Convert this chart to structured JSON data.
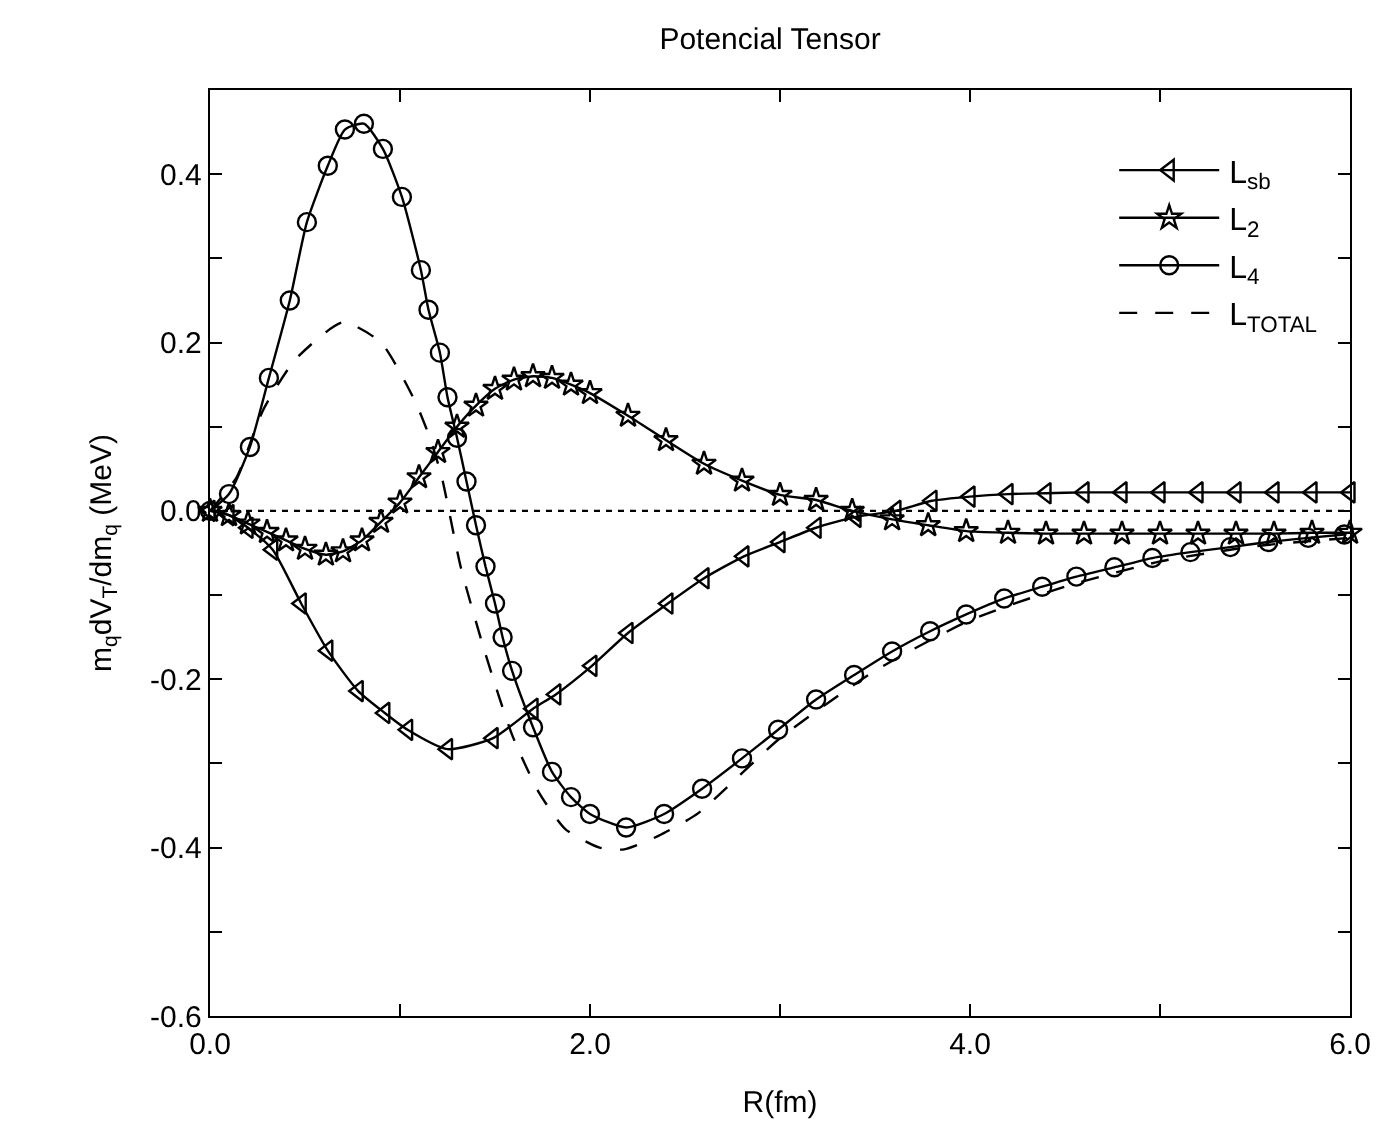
{
  "chart_data": {
    "type": "line",
    "title": "Potencial Tensor",
    "xlabel": "R(fm)",
    "ylabel": "m$_{q}$dV$_{T}$/dm$_{q}$ (MeV)",
    "xlim": [
      0,
      6
    ],
    "ylim": [
      -0.6,
      0.5
    ],
    "xticks": [
      {
        "value": 0,
        "label": "0.0"
      },
      {
        "value": 1,
        "label": null
      },
      {
        "value": 2,
        "label": "2.0"
      },
      {
        "value": 3,
        "label": null
      },
      {
        "value": 4,
        "label": "4.0"
      },
      {
        "value": 5,
        "label": null
      },
      {
        "value": 6,
        "label": "6.0"
      }
    ],
    "yticks": [
      {
        "value": -0.6,
        "label": "-0.6"
      },
      {
        "value": -0.5,
        "label": null
      },
      {
        "value": -0.4,
        "label": "-0.4"
      },
      {
        "value": -0.3,
        "label": null
      },
      {
        "value": -0.2,
        "label": "-0.2"
      },
      {
        "value": -0.1,
        "label": null
      },
      {
        "value": 0,
        "label": "0.0"
      },
      {
        "value": 0.1,
        "label": null
      },
      {
        "value": 0.2,
        "label": "0.2"
      },
      {
        "value": 0.3,
        "label": null
      },
      {
        "value": 0.4,
        "label": "0.4"
      },
      {
        "value": 0.5,
        "label": null
      }
    ],
    "grid": false,
    "legend": "top right",
    "ref_lines": [
      {
        "axis": "y",
        "value": 0,
        "label": null,
        "color": "#000000",
        "line_style": "dotted"
      }
    ],
    "series": [
      {
        "name": "L$_{sb}$",
        "color": "#000000",
        "marker": "triangle",
        "line_style": "solid",
        "x": [
          0,
          0.1,
          0.2,
          0.33,
          0.48,
          0.62,
          0.78,
          0.92,
          1.04,
          1.25,
          1.49,
          1.7,
          1.82,
          2.01,
          2.2,
          2.41,
          2.6,
          2.81,
          3.0,
          3.19,
          3.4,
          3.61,
          3.8,
          4.0,
          4.2,
          4.4,
          4.6,
          4.8,
          5.0,
          5.2,
          5.4,
          5.6,
          5.8,
          6.0
        ],
        "values": [
          0,
          -0.005,
          -0.02,
          -0.046,
          -0.11,
          -0.166,
          -0.214,
          -0.24,
          -0.26,
          -0.283,
          -0.27,
          -0.235,
          -0.218,
          -0.184,
          -0.145,
          -0.11,
          -0.08,
          -0.054,
          -0.037,
          -0.02,
          -0.007,
          0,
          0.012,
          0.017,
          0.02,
          0.021,
          0.022,
          0.022,
          0.022,
          0.022,
          0.022,
          0.022,
          0.022,
          0.022
        ]
      },
      {
        "name": "L$_{2}$",
        "color": "#000000",
        "marker": "star",
        "line_style": "solid",
        "x": [
          0,
          0.1,
          0.2,
          0.3,
          0.4,
          0.5,
          0.61,
          0.7,
          0.8,
          0.9,
          1.0,
          1.1,
          1.2,
          1.3,
          1.4,
          1.5,
          1.6,
          1.7,
          1.8,
          1.9,
          2.0,
          2.2,
          2.4,
          2.6,
          2.8,
          3.0,
          3.19,
          3.38,
          3.59,
          3.78,
          3.98,
          4.2,
          4.4,
          4.6,
          4.8,
          5.0,
          5.2,
          5.4,
          5.6,
          5.8,
          6.0
        ],
        "values": [
          0,
          -0.005,
          -0.015,
          -0.025,
          -0.035,
          -0.045,
          -0.052,
          -0.048,
          -0.035,
          -0.013,
          0.01,
          0.04,
          0.07,
          0.1,
          0.125,
          0.145,
          0.156,
          0.16,
          0.158,
          0.15,
          0.14,
          0.113,
          0.084,
          0.056,
          0.036,
          0.019,
          0.013,
          0,
          -0.01,
          -0.017,
          -0.024,
          -0.026,
          -0.027,
          -0.027,
          -0.027,
          -0.027,
          -0.027,
          -0.027,
          -0.027,
          -0.026,
          -0.026
        ]
      },
      {
        "name": "L$_{4}$",
        "color": "#000000",
        "marker": "circle",
        "line_style": "solid",
        "x": [
          0,
          0.1,
          0.21,
          0.31,
          0.42,
          0.51,
          0.62,
          0.71,
          0.81,
          0.91,
          1.01,
          1.11,
          1.15,
          1.21,
          1.25,
          1.3,
          1.35,
          1.4,
          1.45,
          1.5,
          1.54,
          1.59,
          1.7,
          1.8,
          1.9,
          2.0,
          2.19,
          2.39,
          2.59,
          2.8,
          2.99,
          3.19,
          3.39,
          3.59,
          3.79,
          3.98,
          4.18,
          4.38,
          4.56,
          4.76,
          4.96,
          5.16,
          5.37,
          5.57,
          5.78,
          5.97
        ],
        "values": [
          0,
          0.02,
          0.076,
          0.158,
          0.25,
          0.343,
          0.41,
          0.453,
          0.46,
          0.43,
          0.373,
          0.286,
          0.239,
          0.188,
          0.135,
          0.087,
          0.035,
          -0.017,
          -0.066,
          -0.11,
          -0.15,
          -0.19,
          -0.257,
          -0.31,
          -0.34,
          -0.36,
          -0.376,
          -0.36,
          -0.33,
          -0.294,
          -0.26,
          -0.224,
          -0.195,
          -0.167,
          -0.143,
          -0.123,
          -0.104,
          -0.09,
          -0.078,
          -0.067,
          -0.056,
          -0.049,
          -0.043,
          -0.037,
          -0.032,
          -0.028
        ]
      },
      {
        "name": "L$_{TOTAL}$",
        "color": "#000000",
        "marker": "none",
        "line_style": "dashed",
        "x": [
          0,
          0.14,
          0.28,
          0.45,
          0.7,
          0.9,
          1.08,
          1.16,
          1.22,
          1.32,
          1.45,
          1.59,
          1.73,
          1.87,
          2.05,
          2.18,
          2.36,
          2.57,
          3.0,
          3.5,
          4.0,
          4.5,
          5.0,
          5.5,
          6.0
        ],
        "values": [
          0,
          0.04,
          0.12,
          0.18,
          0.224,
          0.2,
          0.13,
          0.085,
          0.04,
          -0.067,
          -0.17,
          -0.266,
          -0.334,
          -0.378,
          -0.4,
          -0.402,
          -0.386,
          -0.359,
          -0.27,
          -0.19,
          -0.13,
          -0.09,
          -0.06,
          -0.042,
          -0.032
        ]
      }
    ]
  }
}
